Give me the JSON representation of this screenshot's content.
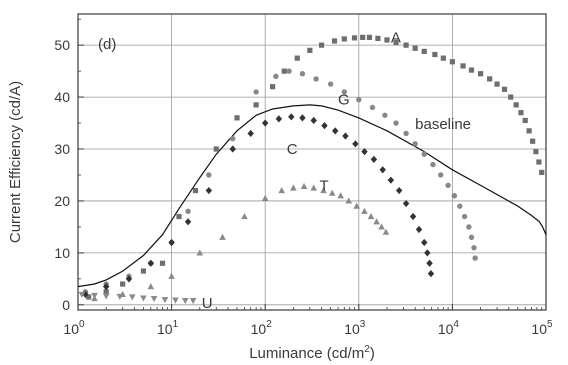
{
  "chart_data": {
    "type": "scatter",
    "panel_label": "(d)",
    "xlabel": {
      "text": "Luminance (cd/m",
      "sup": "2",
      "tail": ")"
    },
    "ylabel": "Current Efficiency (cd/A)",
    "x_scale": "log",
    "xlim": [
      1,
      100000
    ],
    "ylim": [
      -1,
      56
    ],
    "grid": true,
    "x_ticks": [
      {
        "value": 1,
        "base": "10",
        "exp": "0"
      },
      {
        "value": 10,
        "base": "10",
        "exp": "1"
      },
      {
        "value": 100,
        "base": "10",
        "exp": "2"
      },
      {
        "value": 1000,
        "base": "10",
        "exp": "3"
      },
      {
        "value": 10000,
        "base": "10",
        "exp": "4"
      },
      {
        "value": 100000,
        "base": "10",
        "exp": "5"
      }
    ],
    "y_ticks": [
      0,
      10,
      20,
      30,
      40,
      50
    ],
    "series": [
      {
        "name": "A",
        "marker": "square",
        "color": "#6e6e6e",
        "x": [
          1.3,
          2.0,
          3.0,
          5.0,
          8.0,
          12,
          18,
          30,
          50,
          80,
          120,
          160,
          220,
          300,
          400,
          550,
          700,
          900,
          1100,
          1300,
          1600,
          2000,
          2500,
          3200,
          4000,
          5000,
          6500,
          8000,
          10000,
          13000,
          16000,
          20000,
          25000,
          30000,
          36000,
          42000,
          48000,
          54000,
          60000,
          66000,
          72000,
          78000,
          84000,
          90000
        ],
        "y": [
          1.5,
          2.5,
          4.0,
          6.5,
          8.0,
          17,
          22,
          30,
          36,
          38.5,
          42,
          45,
          47.5,
          49,
          50,
          50.8,
          51.2,
          51.4,
          51.5,
          51.5,
          51.3,
          51.0,
          50.5,
          50.0,
          49.4,
          48.8,
          48.2,
          47.5,
          46.8,
          46.0,
          45.2,
          44.5,
          43.5,
          42.5,
          41.5,
          40.0,
          38.5,
          37.0,
          35.5,
          33.5,
          31.5,
          29.5,
          27.5,
          25.5
        ]
      },
      {
        "name": "G",
        "marker": "circle",
        "color": "#888888",
        "x": [
          1.2,
          2.0,
          3.5,
          6.0,
          10,
          15,
          25,
          45,
          80,
          130,
          180,
          250,
          350,
          500,
          700,
          1000,
          1400,
          1900,
          2500,
          3200,
          4000,
          5000,
          6200,
          7500,
          9000,
          10500,
          12000,
          13500,
          15000,
          16000,
          17000,
          17500
        ],
        "y": [
          2.5,
          4.0,
          5.5,
          8.0,
          12,
          18,
          25,
          32,
          41,
          44,
          45,
          44.5,
          43.5,
          42.5,
          41,
          39.5,
          38,
          36.5,
          35,
          33,
          31,
          29,
          27,
          25,
          23,
          21,
          19,
          17,
          15,
          13,
          11,
          9
        ]
      },
      {
        "name": "C",
        "marker": "diamond",
        "color": "#333333",
        "x": [
          1.2,
          2.0,
          3.5,
          6.0,
          10,
          15,
          25,
          45,
          70,
          100,
          140,
          190,
          250,
          330,
          430,
          560,
          720,
          920,
          1150,
          1450,
          1800,
          2200,
          2700,
          3200,
          3800,
          4400,
          5000,
          5400,
          5700,
          5900
        ],
        "y": [
          2.0,
          3.5,
          5.0,
          8.0,
          12,
          16,
          22,
          30,
          33,
          35,
          35.8,
          36.2,
          36.0,
          35.5,
          34.5,
          33.5,
          32.5,
          31,
          29.5,
          28,
          26,
          24,
          22,
          19.5,
          17,
          14.5,
          12,
          10,
          8,
          6
        ]
      },
      {
        "name": "T",
        "marker": "triangle-up",
        "color": "#8a8a8a",
        "x": [
          1.5,
          3.0,
          6.0,
          10,
          20,
          35,
          60,
          100,
          150,
          200,
          260,
          330,
          420,
          520,
          640,
          780,
          950,
          1150,
          1350,
          1550,
          1750,
          1950
        ],
        "y": [
          1.2,
          2.0,
          3.5,
          5.5,
          10,
          13,
          17,
          20.5,
          22,
          22.5,
          22.8,
          22.5,
          22.0,
          21.5,
          21.0,
          20.0,
          19.0,
          18.0,
          17.0,
          16.0,
          15.0,
          14.0
        ]
      },
      {
        "name": "U",
        "marker": "triangle-down",
        "color": "#8a8a8a",
        "x": [
          1.1,
          1.5,
          2.0,
          2.8,
          3.8,
          5.0,
          6.5,
          8.5,
          11,
          14,
          17
        ],
        "y": [
          2.0,
          1.8,
          1.7,
          1.6,
          1.5,
          1.3,
          1.2,
          1.0,
          0.9,
          0.8,
          0.8
        ]
      },
      {
        "name": "baseline",
        "marker": "line",
        "color": "#111111",
        "x": [
          1,
          1.5,
          2,
          3,
          5,
          8,
          12,
          20,
          30,
          50,
          80,
          120,
          200,
          300,
          400,
          600,
          1000,
          2000,
          5000,
          10000,
          20000,
          50000,
          70000,
          85000,
          92000,
          100000
        ],
        "y": [
          3.5,
          4.0,
          4.8,
          6.5,
          9.5,
          13.5,
          18.5,
          24.5,
          29.0,
          33.5,
          36.5,
          37.7,
          38.3,
          38.5,
          38.3,
          37.5,
          36.0,
          33.5,
          29.5,
          26.0,
          23.0,
          19.0,
          17.2,
          16.0,
          15.0,
          13.5
        ]
      }
    ],
    "annotations": [
      {
        "text": "A",
        "x": 2200,
        "y": 51.5
      },
      {
        "text": "G",
        "x": 600,
        "y": 39.5
      },
      {
        "text": "baseline",
        "x": 4000,
        "y": 34.8
      },
      {
        "text": "C",
        "x": 170,
        "y": 30.0
      },
      {
        "text": "T",
        "x": 380,
        "y": 23.0
      },
      {
        "text": "U",
        "x": 21,
        "y": 0.3
      }
    ]
  }
}
